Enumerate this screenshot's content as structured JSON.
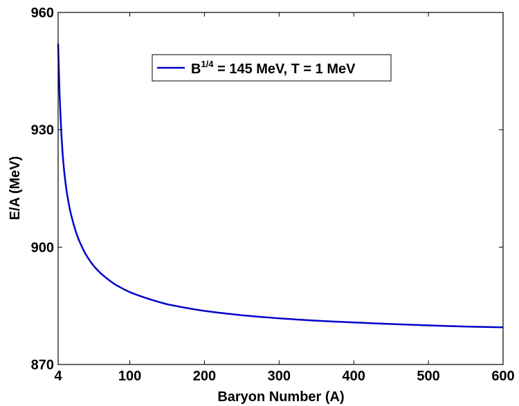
{
  "chart_data": {
    "type": "line",
    "title": "",
    "xlabel": "Baryon Number (A)",
    "ylabel": "E/A (MeV)",
    "xlim": [
      4,
      600
    ],
    "ylim": [
      870,
      960
    ],
    "xticks": [
      4,
      100,
      200,
      300,
      400,
      500,
      600
    ],
    "xtick_labels": [
      "4",
      "100",
      "200",
      "300",
      "400",
      "500",
      "600"
    ],
    "yticks": [
      870,
      900,
      930,
      960
    ],
    "ytick_labels": [
      "870",
      "900",
      "930",
      "960"
    ],
    "grid": false,
    "legend_placement": "top-center",
    "colors": {
      "series": "#0000cc",
      "axis": "#000000"
    },
    "legend": {
      "prefix": "B",
      "superscript": "1/4",
      "suffix": " = 145 MeV, T = 1 MeV"
    },
    "series": [
      {
        "name": "B^{1/4} = 145 MeV, T = 1 MeV",
        "x": [
          4,
          5,
          6,
          7,
          8,
          10,
          12,
          15,
          20,
          25,
          30,
          40,
          50,
          60,
          80,
          100,
          150,
          200,
          250,
          300,
          350,
          400,
          450,
          500,
          550,
          600
        ],
        "y": [
          952.0,
          945.5,
          939.0,
          934.5,
          930.3,
          924.0,
          919.6,
          914.8,
          909.4,
          905.7,
          902.7,
          898.5,
          895.6,
          893.5,
          890.5,
          888.5,
          885.4,
          883.7,
          882.6,
          881.8,
          881.2,
          880.75,
          880.35,
          880.0,
          879.7,
          879.5
        ]
      }
    ]
  }
}
